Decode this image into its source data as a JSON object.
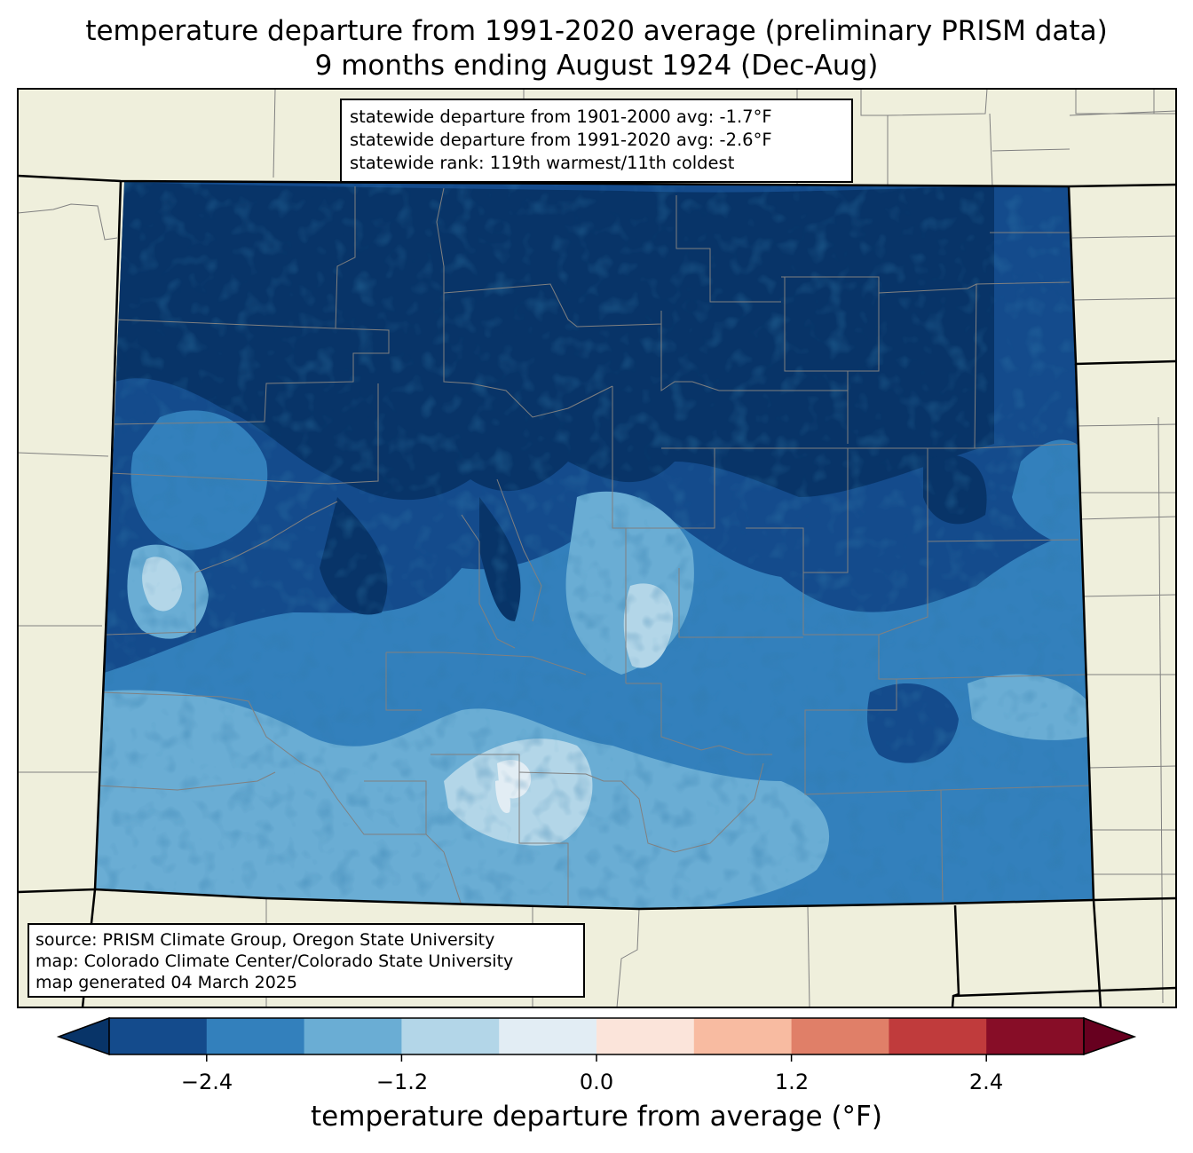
{
  "title": {
    "line1": "temperature departure from 1991-2020 average (preliminary PRISM data)",
    "line2": "9 months ending August 1924 (Dec-Aug)"
  },
  "stats": {
    "line1": "statewide departure from 1901-2000 avg: -1.7°F",
    "line2": "statewide departure from 1991-2020 avg: -2.6°F",
    "line3": "statewide rank: 119th warmest/11th coldest"
  },
  "source": {
    "line1": "source: PRISM Climate Group, Oregon State University",
    "line2": "map: Colorado Climate Center/Colorado State University",
    "line3": "map generated 04 March 2025"
  },
  "colorbar": {
    "label": "temperature departure from average (°F)",
    "ticks": [
      "−2.4",
      "−1.2",
      "0.0",
      "1.2",
      "2.4"
    ],
    "bins": [
      -3.0,
      -2.4,
      -1.8,
      -1.2,
      -0.6,
      0.0,
      0.6,
      1.2,
      1.8,
      2.4,
      3.0
    ],
    "under_color": "#083468",
    "over_color": "#67001f",
    "colors": [
      "#144b8c",
      "#3380bc",
      "#6aadd4",
      "#b3d6e8",
      "#e2edf4",
      "#fbe4da",
      "#f8bba1",
      "#e07f68",
      "#c03b3c",
      "#870d27"
    ]
  },
  "map_colors": {
    "background": "#efefdc",
    "state_line": "#000000",
    "county_line": "#808080"
  }
}
